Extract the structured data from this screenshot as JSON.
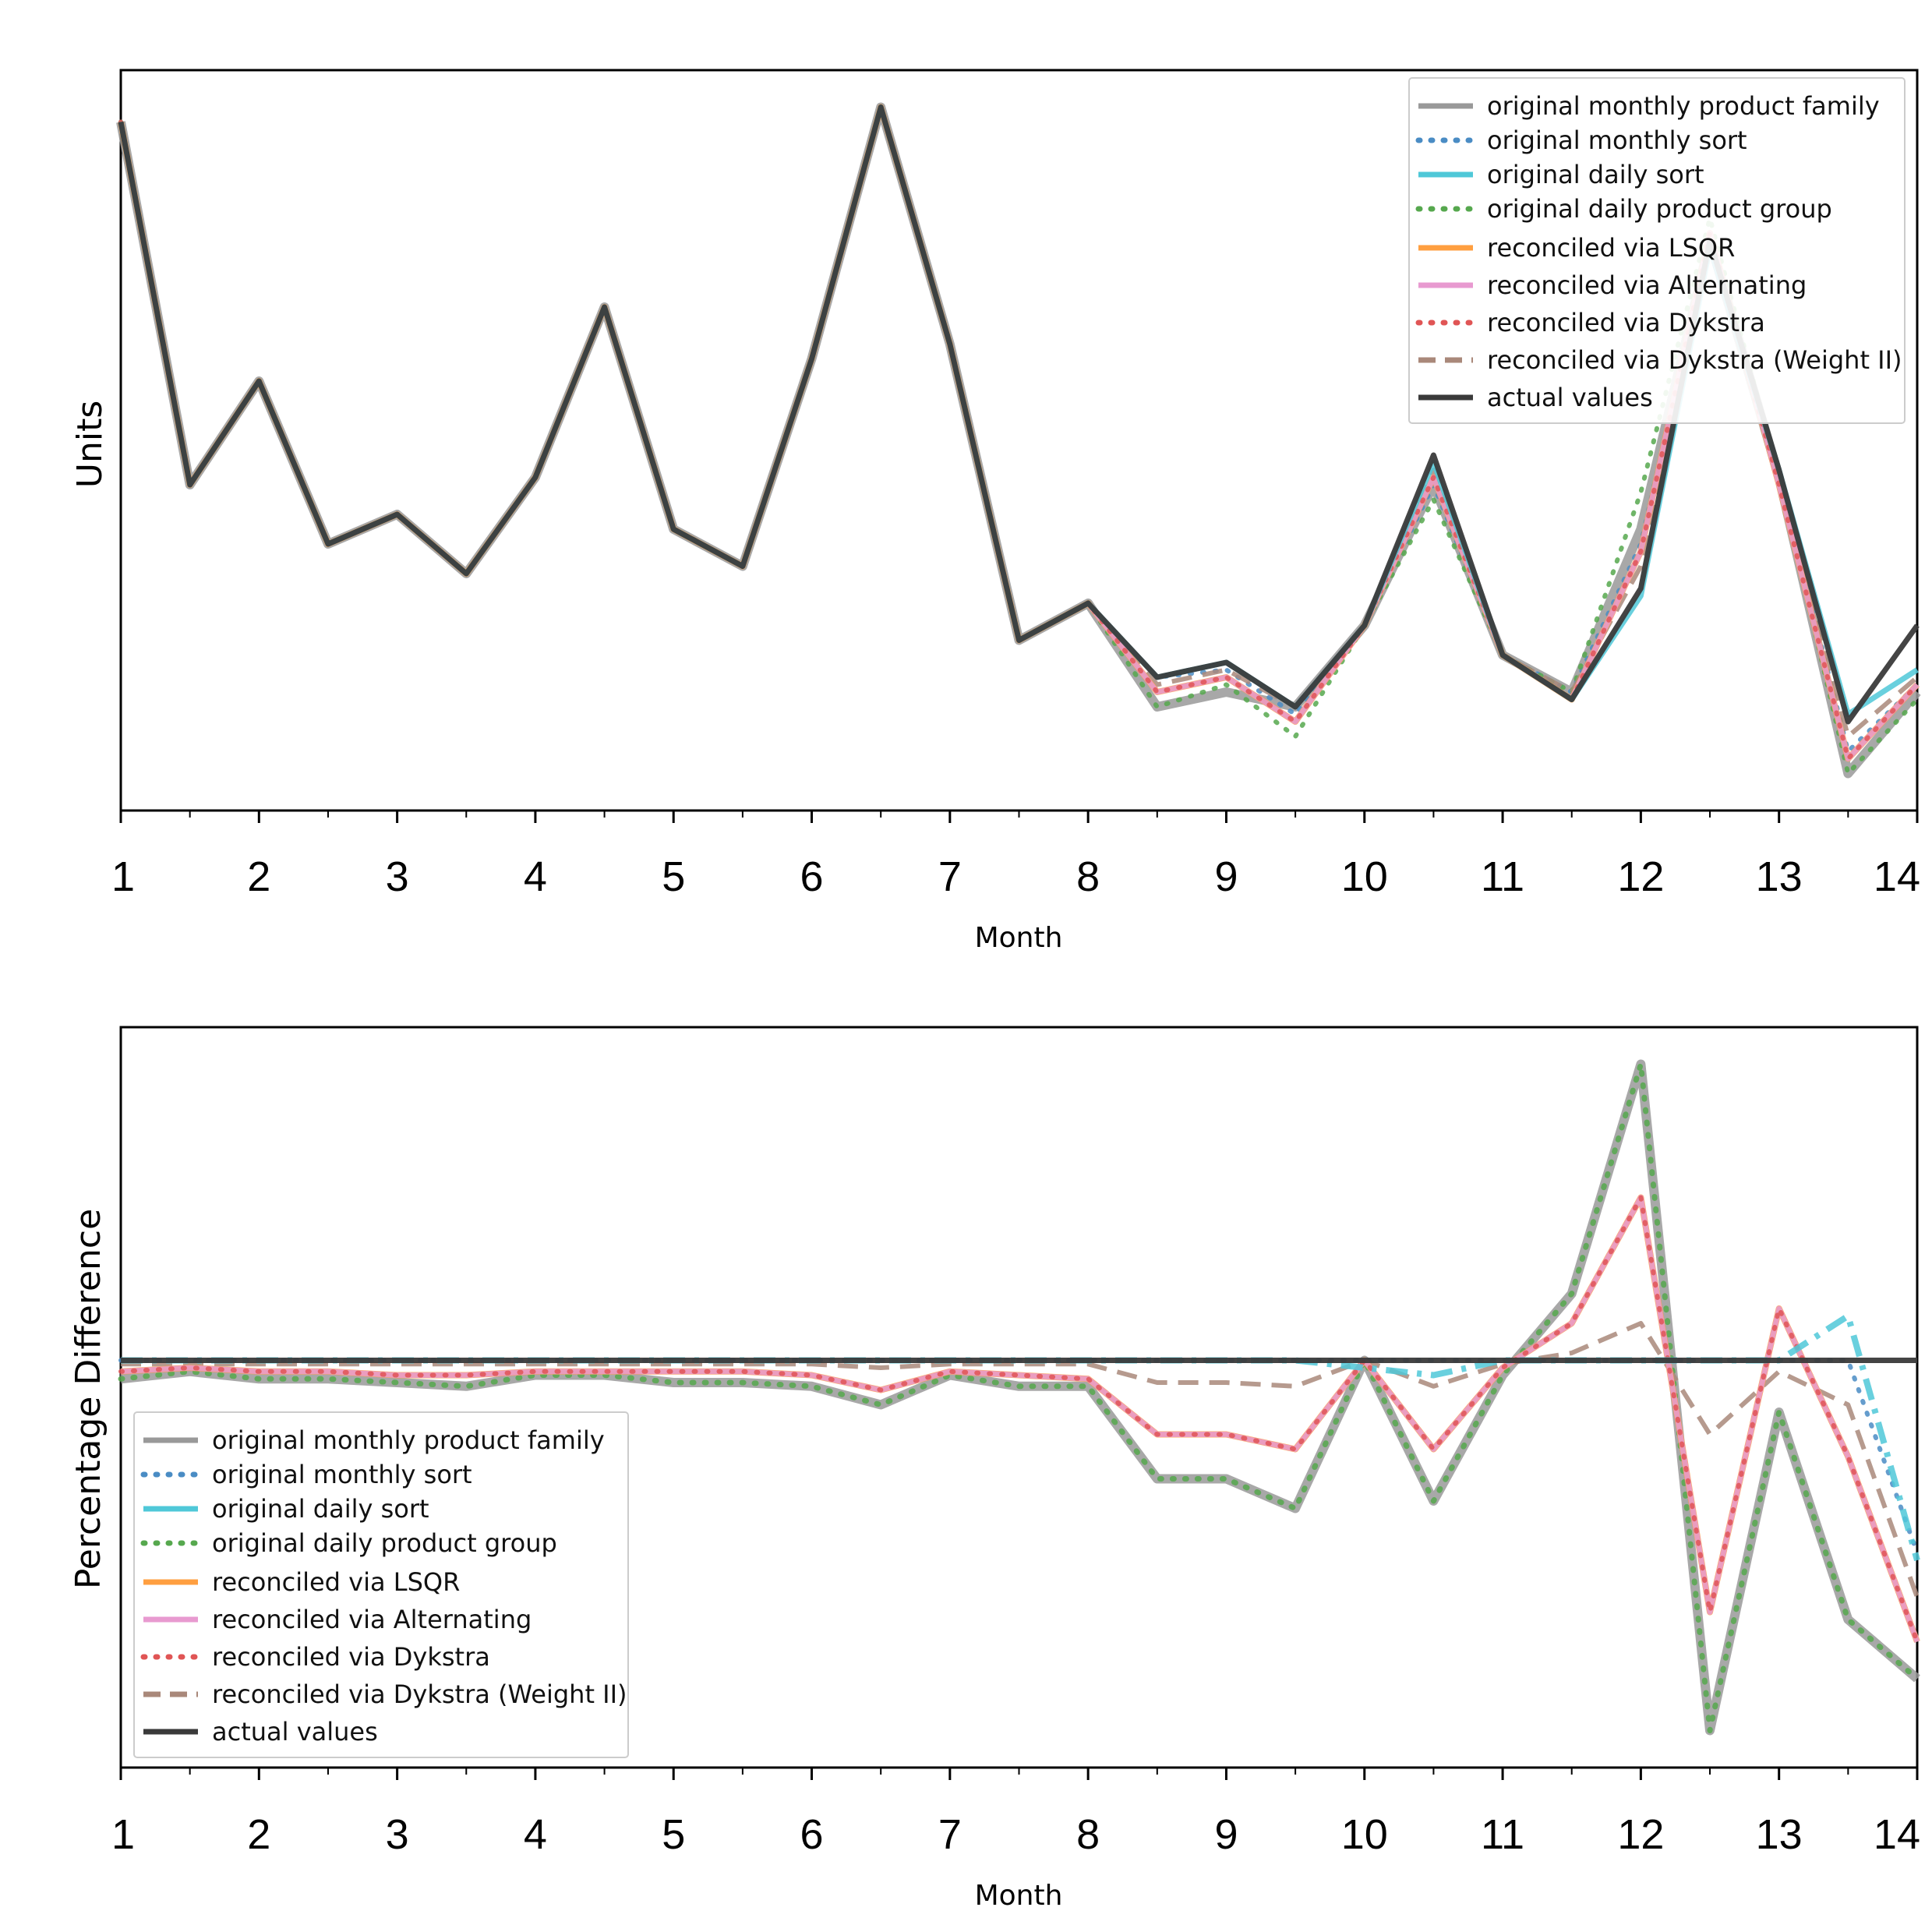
{
  "chart_data": [
    {
      "type": "line",
      "title": "",
      "xlabel": "Month",
      "ylabel": "Units",
      "xlim": [
        1,
        14
      ],
      "ylim": [
        0,
        100
      ],
      "x_ticks": [
        "1",
        "2",
        "3",
        "4",
        "5",
        "6",
        "7",
        "8",
        "9",
        "10",
        "11",
        "12",
        "13",
        "14"
      ],
      "legend_position": "top-right",
      "x": [
        1,
        1.5,
        2,
        2.5,
        3,
        3.5,
        4,
        4.5,
        5,
        5.5,
        6,
        6.5,
        7,
        7.5,
        8,
        8.5,
        9,
        9.5,
        10,
        10.5,
        11,
        11.5,
        12,
        12.5,
        13,
        13.5,
        14
      ],
      "series": [
        {
          "name": "original monthly product family",
          "color": "#999999",
          "style": "solid",
          "values": [
            93,
            44,
            58,
            36,
            40,
            32,
            45,
            68,
            38,
            33,
            61,
            95,
            63,
            23,
            28,
            14,
            16,
            14,
            25,
            44,
            21,
            16,
            38,
            77,
            45,
            5,
            16
          ]
        },
        {
          "name": "original monthly sort",
          "color": "#4a8cc4",
          "style": "dotted",
          "values": [
            93,
            44,
            58,
            36,
            40,
            32,
            45,
            68,
            38,
            33,
            61,
            95,
            63,
            23,
            28,
            18,
            19,
            13,
            25,
            44,
            21,
            16,
            36,
            77,
            45,
            8,
            17
          ]
        },
        {
          "name": "original daily sort",
          "color": "#4fc8d8",
          "style": "solid",
          "values": [
            93,
            44,
            58,
            36,
            40,
            32,
            45,
            68,
            38,
            33,
            61,
            95,
            63,
            23,
            28,
            18,
            20,
            14,
            25,
            47,
            21,
            15,
            29,
            76,
            46,
            13,
            19
          ]
        },
        {
          "name": "original daily product group",
          "color": "#56a84e",
          "style": "dotted",
          "values": [
            93,
            44,
            58,
            36,
            40,
            32,
            45,
            68,
            38,
            33,
            61,
            95,
            63,
            23,
            28,
            14,
            17,
            10,
            25,
            42,
            21,
            16,
            43,
            80,
            45,
            5,
            15
          ]
        },
        {
          "name": "reconciled via LSQR",
          "color": "#ff9f40",
          "style": "solid",
          "values": [
            93,
            44,
            58,
            36,
            40,
            32,
            45,
            68,
            38,
            33,
            61,
            95,
            63,
            23,
            28,
            16,
            18,
            12,
            25,
            45,
            21,
            15,
            35,
            78,
            44,
            7,
            17
          ]
        },
        {
          "name": "reconciled via Alternating",
          "color": "#e89ad0",
          "style": "solid",
          "values": [
            93,
            44,
            58,
            36,
            40,
            32,
            45,
            68,
            38,
            33,
            61,
            95,
            63,
            23,
            28,
            16,
            18,
            12,
            25,
            45,
            21,
            15,
            35,
            78,
            44,
            7,
            17
          ]
        },
        {
          "name": "reconciled via Dykstra",
          "color": "#e05555",
          "style": "dotted",
          "values": [
            93,
            44,
            58,
            36,
            40,
            32,
            45,
            68,
            38,
            33,
            61,
            95,
            63,
            23,
            28,
            16,
            18,
            12,
            25,
            45,
            21,
            15,
            35,
            78,
            44,
            7,
            17
          ]
        },
        {
          "name": "reconciled via Dykstra (Weight II)",
          "color": "#a9887a",
          "style": "dashed",
          "values": [
            93,
            44,
            58,
            36,
            40,
            32,
            45,
            68,
            38,
            33,
            61,
            95,
            63,
            23,
            28,
            17,
            19,
            14,
            25,
            46,
            21,
            16,
            33,
            77,
            45,
            10,
            18
          ]
        },
        {
          "name": "actual values",
          "color": "#3a3a3a",
          "style": "solid",
          "values": [
            93,
            44,
            58,
            36,
            40,
            32,
            45,
            68,
            38,
            33,
            61,
            95,
            63,
            23,
            28,
            18,
            20,
            14,
            25,
            48,
            21,
            15,
            30,
            77,
            46,
            12,
            25
          ]
        }
      ]
    },
    {
      "type": "line",
      "title": "",
      "xlabel": "Month",
      "ylabel": "Percentage Difference",
      "xlim": [
        1,
        14
      ],
      "ylim": [
        -55,
        45
      ],
      "x_ticks": [
        "1",
        "2",
        "3",
        "4",
        "5",
        "6",
        "7",
        "8",
        "9",
        "10",
        "11",
        "12",
        "13",
        "14"
      ],
      "legend_position": "bottom-left",
      "x": [
        1,
        1.5,
        2,
        2.5,
        3,
        3.5,
        4,
        4.5,
        5,
        5.5,
        6,
        6.5,
        7,
        7.5,
        8,
        8.5,
        9,
        9.5,
        10,
        10.5,
        11,
        11.5,
        12,
        12.5,
        13,
        13.5,
        14
      ],
      "series": [
        {
          "name": "original monthly product family",
          "color": "#999999",
          "style": "solid",
          "values": [
            -2.5,
            -1.5,
            -2.5,
            -2.5,
            -3,
            -3.5,
            -2,
            -2,
            -3,
            -3,
            -3.5,
            -6,
            -2,
            -3.5,
            -3.5,
            -16,
            -16,
            -20,
            0,
            -19,
            -2,
            9,
            40,
            -50,
            -7,
            -35,
            -43
          ]
        },
        {
          "name": "original monthly sort",
          "color": "#4a8cc4",
          "style": "dotted",
          "values": [
            0,
            0,
            0,
            0,
            0,
            0,
            0,
            0,
            0,
            0,
            0,
            0,
            0,
            0,
            0,
            0,
            0,
            0,
            0,
            0,
            0,
            0,
            0,
            0,
            0,
            0,
            -26
          ]
        },
        {
          "name": "original daily sort",
          "color": "#4fc8d8",
          "style": "dashdot",
          "values": [
            0,
            0,
            0,
            0,
            0,
            0,
            0,
            0,
            0,
            0,
            0,
            0,
            0,
            0,
            0,
            0,
            0,
            0,
            -1,
            -2,
            0,
            0,
            0,
            0,
            0,
            6,
            -27
          ]
        },
        {
          "name": "original daily product group",
          "color": "#56a84e",
          "style": "dotted",
          "values": [
            -2.5,
            -1.5,
            -2.5,
            -2.5,
            -3,
            -3.5,
            -2,
            -2,
            -3,
            -3,
            -3.5,
            -6,
            -2,
            -3.5,
            -3.5,
            -16,
            -16,
            -20,
            0,
            -19,
            -2,
            9,
            40,
            -50,
            -7,
            -35,
            -43
          ]
        },
        {
          "name": "reconciled via LSQR",
          "color": "#ff9f40",
          "style": "solid",
          "values": [
            -1.5,
            -1,
            -1.5,
            -1.5,
            -2,
            -2,
            -1.5,
            -1.5,
            -1.5,
            -1.5,
            -2,
            -4,
            -1.5,
            -2,
            -2.5,
            -10,
            -10,
            -12,
            0,
            -12,
            -1,
            5,
            22,
            -34,
            7,
            -13,
            -38
          ]
        },
        {
          "name": "reconciled via Alternating",
          "color": "#e89ad0",
          "style": "solid",
          "values": [
            -1.5,
            -1,
            -1.5,
            -1.5,
            -2,
            -2,
            -1.5,
            -1.5,
            -1.5,
            -1.5,
            -2,
            -4,
            -1.5,
            -2,
            -2.5,
            -10,
            -10,
            -12,
            0,
            -12,
            -1,
            5,
            22,
            -34,
            7,
            -13,
            -38
          ]
        },
        {
          "name": "reconciled via Dykstra",
          "color": "#e05555",
          "style": "dotted",
          "values": [
            -1.5,
            -1,
            -1.5,
            -1.5,
            -2,
            -2,
            -1.5,
            -1.5,
            -1.5,
            -1.5,
            -2,
            -4,
            -1.5,
            -2,
            -2.5,
            -10,
            -10,
            -12,
            0,
            -12,
            -1,
            5,
            22,
            -34,
            7,
            -13,
            -38
          ]
        },
        {
          "name": "reconciled via Dykstra (Weight II)",
          "color": "#a9887a",
          "style": "dashed",
          "values": [
            -0.5,
            -0.5,
            -0.5,
            -0.5,
            -0.5,
            -0.5,
            -0.5,
            -0.5,
            -0.5,
            -0.5,
            -0.5,
            -1,
            -0.5,
            -0.5,
            -0.5,
            -3,
            -3,
            -3.5,
            0,
            -3.5,
            -0.5,
            1,
            5,
            -10,
            -1.5,
            -6,
            -32
          ]
        },
        {
          "name": "actual values",
          "color": "#3a3a3a",
          "style": "solid",
          "values": [
            0,
            0,
            0,
            0,
            0,
            0,
            0,
            0,
            0,
            0,
            0,
            0,
            0,
            0,
            0,
            0,
            0,
            0,
            0,
            0,
            0,
            0,
            0,
            0,
            0,
            0,
            0
          ]
        }
      ]
    }
  ]
}
